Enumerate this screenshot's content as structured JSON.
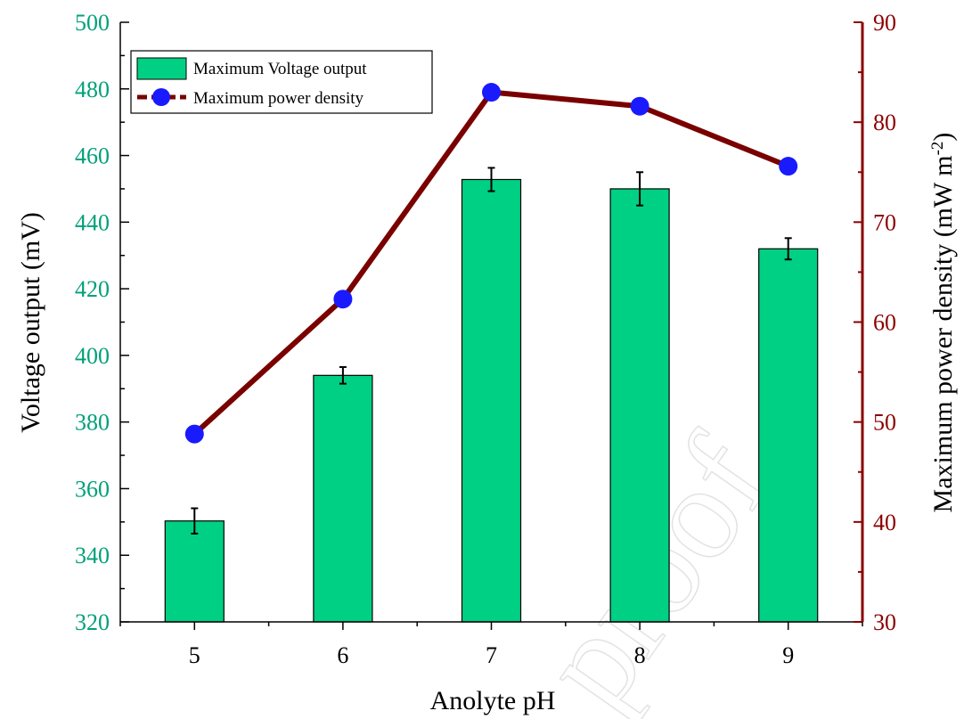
{
  "chart_data": {
    "type": "bar",
    "categories": [
      "5",
      "6",
      "7",
      "8",
      "9"
    ],
    "xlabel": "Anolyte pH",
    "bar_series": {
      "name": "Maximum Voltage output",
      "values": [
        350.3,
        394.0,
        452.8,
        450.0,
        432.0
      ],
      "errors": [
        3.8,
        2.5,
        3.5,
        5.0,
        3.2
      ],
      "color": "#00d084"
    },
    "line_series": {
      "name": "Maximum power density",
      "values": [
        48.8,
        62.3,
        83.0,
        81.6,
        75.6
      ],
      "line_color": "#7a0000",
      "marker_color": "#1a1aff"
    },
    "y_left": {
      "label": "Voltage output (mV)",
      "lim": [
        320,
        500
      ],
      "ticks": [
        "320",
        "340",
        "360",
        "380",
        "400",
        "420",
        "440",
        "460",
        "480",
        "500"
      ],
      "color": "#00a07a"
    },
    "y_right": {
      "label": "Maximum power density (mW m",
      "label_sup": "-2",
      "label_end": ")",
      "lim": [
        30,
        90
      ],
      "ticks": [
        "30",
        "40",
        "50",
        "60",
        "70",
        "80",
        "90"
      ],
      "color": "#8b0000"
    },
    "legend_position": "top-left",
    "grid": false,
    "watermark": "proof"
  }
}
